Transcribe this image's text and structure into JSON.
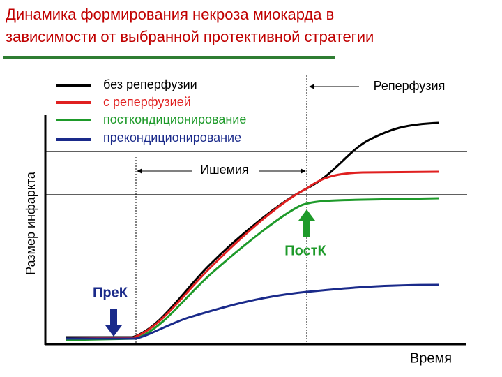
{
  "header": {
    "title_line1": "Динамика формирования некроза миокарда в",
    "title_line2": "зависимости от выбранной протективной стратегии"
  },
  "legend": [
    "без реперфузии",
    "с реперфузией",
    "посткондиционирование",
    "прекондиционирование"
  ],
  "labels": {
    "y_axis": "Размер инфаркта",
    "x_axis": "Время",
    "ischemia": "Ишемия",
    "reperfusion": "Реперфузия",
    "postk": "ПостК",
    "prek": "ПреК"
  }
}
